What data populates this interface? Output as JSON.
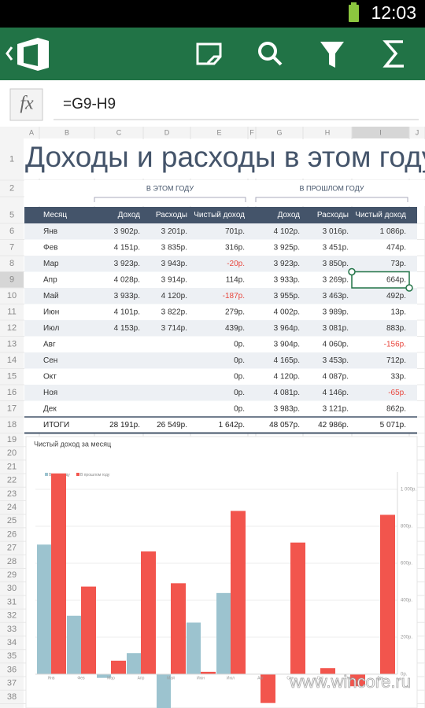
{
  "status_bar": {
    "time": "12:03"
  },
  "formula_bar": {
    "label": "fx",
    "formula": "=G9-H9"
  },
  "sheet": {
    "columns": [
      "A",
      "B",
      "C",
      "D",
      "E",
      "F",
      "G",
      "H",
      "I",
      "J"
    ],
    "rows": [
      1,
      2,
      5,
      6,
      7,
      8,
      9,
      10,
      11,
      12,
      13,
      14,
      15,
      16,
      17,
      18,
      19,
      20,
      21,
      22,
      23,
      24,
      25,
      26,
      27,
      28,
      29,
      30,
      31,
      32,
      33,
      34,
      35,
      36,
      37,
      38
    ],
    "title": "Доходы и расходы в этом году",
    "group_headers": [
      "В ЭТОМ ГОДУ",
      "В ПРОШЛОМ ГОДУ"
    ],
    "table": {
      "header": [
        "Месяц",
        "Доход",
        "Расходы",
        "Чистый доход",
        "Доход",
        "Расходы",
        "Чистый доход"
      ],
      "rows": [
        [
          "Янв",
          "3 902р.",
          "3 201р.",
          "701р.",
          "4 102р.",
          "3 016р.",
          "1 086р."
        ],
        [
          "Фев",
          "4 151р.",
          "3 835р.",
          "316р.",
          "3 925р.",
          "3 451р.",
          "474р."
        ],
        [
          "Мар",
          "3 923р.",
          "3 943р.",
          "-20р.",
          "3 923р.",
          "3 850р.",
          "73р."
        ],
        [
          "Апр",
          "4 028р.",
          "3 914р.",
          "114р.",
          "3 933р.",
          "3 269р.",
          "664р."
        ],
        [
          "Май",
          "3 933р.",
          "4 120р.",
          "-187р.",
          "3 955р.",
          "3 463р.",
          "492р."
        ],
        [
          "Июн",
          "4 101р.",
          "3 822р.",
          "279р.",
          "4 002р.",
          "3 989р.",
          "13р."
        ],
        [
          "Июл",
          "4 153р.",
          "3 714р.",
          "439р.",
          "3 964р.",
          "3 081р.",
          "883р."
        ],
        [
          "Авг",
          null,
          null,
          "0р.",
          "3 904р.",
          "4 060р.",
          "-156р."
        ],
        [
          "Сен",
          null,
          null,
          "0р.",
          "4 165р.",
          "3 453р.",
          "712р."
        ],
        [
          "Окт",
          null,
          null,
          "0р.",
          "4 120р.",
          "4 087р.",
          "33р."
        ],
        [
          "Ноя",
          null,
          null,
          "0р.",
          "4 081р.",
          "4 146р.",
          "-65р."
        ],
        [
          "Дек",
          null,
          null,
          "0р.",
          "3 983р.",
          "3 121р.",
          "862р."
        ]
      ],
      "total": [
        "ИТОГИ",
        "28 191р.",
        "26 549р.",
        "1 642р.",
        "48 057р.",
        "42 986р.",
        "5 071р."
      ]
    }
  },
  "chart": {
    "type": "bar",
    "title": "Чистый доход за месяц",
    "categories": [
      "Янв",
      "Фев",
      "Мар",
      "Апр",
      "Май",
      "Июн",
      "Июл",
      "Авг",
      "Сен",
      "Окт",
      "Ноя",
      "Дек"
    ],
    "series": [
      {
        "name": "В этом году",
        "color": "#9cc3cf",
        "values": [
          701,
          316,
          -20,
          114,
          -187,
          279,
          439,
          0,
          0,
          0,
          0,
          0
        ]
      },
      {
        "name": "В прошлом году",
        "color": "#f2554d",
        "values": [
          1086,
          474,
          73,
          664,
          492,
          13,
          883,
          -156,
          712,
          33,
          -65,
          862
        ]
      }
    ],
    "yticks": [
      {
        "value": 0,
        "label": "0р."
      },
      {
        "value": 200,
        "label": "200р."
      },
      {
        "value": 400,
        "label": "400р."
      },
      {
        "value": 600,
        "label": "600р."
      },
      {
        "value": 800,
        "label": "800р."
      },
      {
        "value": 1000,
        "label": "1 000р."
      }
    ],
    "grid": true
  },
  "watermark": "www.wincore.ru"
}
